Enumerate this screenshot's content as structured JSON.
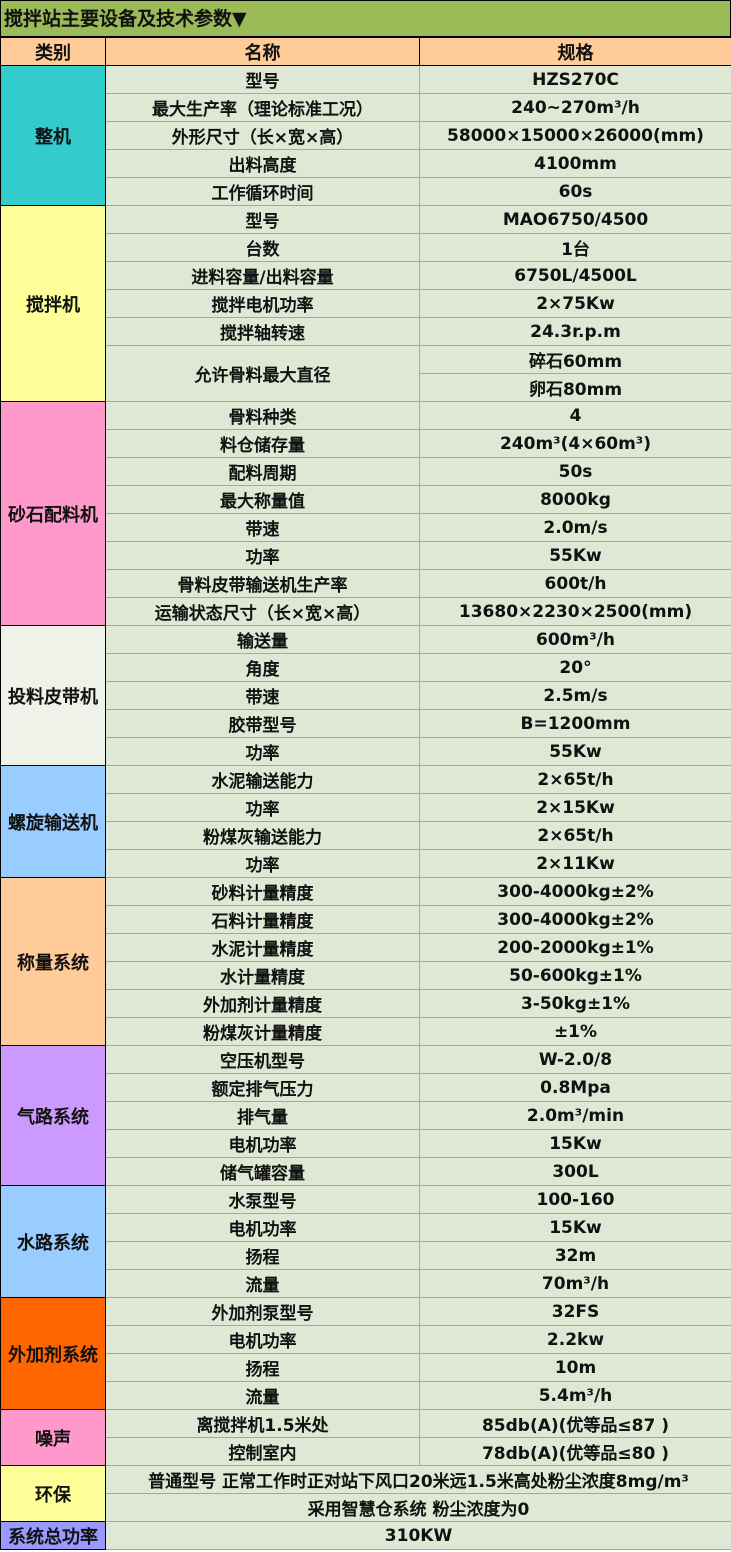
{
  "title": "搅拌站主要设备及技术参数▼",
  "headers": [
    "类别",
    "名称",
    "规格"
  ],
  "categories": [
    {
      "name": "整机",
      "color": "#33cccc",
      "rows": [
        {
          "name": "型号",
          "spec": "HZS270C"
        },
        {
          "name": "最大生产率（理论标准工况）",
          "spec": "240~270m³/h"
        },
        {
          "name": "外形尺寸（长×宽×高）",
          "spec": "58000×15000×26000(mm)"
        },
        {
          "name": "出料高度",
          "spec": "4100mm"
        },
        {
          "name": "工作循环时间",
          "spec": "60s"
        }
      ]
    },
    {
      "name": "搅拌机",
      "color": "#ffff99",
      "rows": [
        {
          "name": "型号",
          "spec": "MAO6750/4500"
        },
        {
          "name": "台数",
          "spec": "1台"
        },
        {
          "name": "进料容量/出料容量",
          "spec": "6750L/4500L"
        },
        {
          "name": "搅拌电机功率",
          "spec": "2×75Kw"
        },
        {
          "name": "搅拌轴转速",
          "spec": "24.3r.p.m"
        },
        {
          "name": "允许骨料最大直径",
          "specs": [
            "碎石60mm",
            "卵石80mm"
          ]
        }
      ]
    },
    {
      "name": "砂石配料机",
      "color": "#ff99cc",
      "rows": [
        {
          "name": "骨料种类",
          "spec": "4"
        },
        {
          "name": "料仓储存量",
          "spec": "240m³(4×60m³)"
        },
        {
          "name": "配料周期",
          "spec": "50s"
        },
        {
          "name": "最大称量值",
          "spec": "8000kg"
        },
        {
          "name": "带速",
          "spec": "2.0m/s"
        },
        {
          "name": "功率",
          "spec": "55Kw"
        },
        {
          "name": "骨料皮带输送机生产率",
          "spec": "600t/h"
        },
        {
          "name": "运输状态尺寸（长×宽×高）",
          "spec": "13680×2230×2500(mm)"
        }
      ]
    },
    {
      "name": "投料皮带机",
      "color": "#eef2e8",
      "rows": [
        {
          "name": "输送量",
          "spec": "600m³/h"
        },
        {
          "name": "角度",
          "spec": "20°"
        },
        {
          "name": "带速",
          "spec": "2.5m/s"
        },
        {
          "name": "胶带型号",
          "spec": "B=1200mm"
        },
        {
          "name": "功率",
          "spec": "55Kw"
        }
      ]
    },
    {
      "name": "螺旋输送机",
      "color": "#99ccff",
      "rows": [
        {
          "name": "水泥输送能力",
          "spec": "2×65t/h"
        },
        {
          "name": "功率",
          "spec": "2×15Kw"
        },
        {
          "name": "粉煤灰输送能力",
          "spec": "2×65t/h"
        },
        {
          "name": "功率",
          "spec": "2×11Kw"
        }
      ]
    },
    {
      "name": "称量系统",
      "color": "#ffcc99",
      "rows": [
        {
          "name": "砂料计量精度",
          "spec": "300-4000kg±2%"
        },
        {
          "name": "石料计量精度",
          "spec": "300-4000kg±2%"
        },
        {
          "name": "水泥计量精度",
          "spec": "200-2000kg±1%"
        },
        {
          "name": "水计量精度",
          "spec": "50-600kg±1%"
        },
        {
          "name": "外加剂计量精度",
          "spec": "3-50kg±1%"
        },
        {
          "name": "粉煤灰计量精度",
          "spec": "±1%"
        }
      ]
    },
    {
      "name": "气路系统",
      "color": "#cc99ff",
      "rows": [
        {
          "name": "空压机型号",
          "spec": "W-2.0/8"
        },
        {
          "name": "额定排气压力",
          "spec": "0.8Mpa"
        },
        {
          "name": "排气量",
          "spec": "2.0m³/min"
        },
        {
          "name": "电机功率",
          "spec": "15Kw"
        },
        {
          "name": "储气罐容量",
          "spec": "300L"
        }
      ]
    },
    {
      "name": "水路系统",
      "color": "#99ccff",
      "rows": [
        {
          "name": "水泵型号",
          "spec": "100-160"
        },
        {
          "name": "电机功率",
          "spec": "15Kw"
        },
        {
          "name": "扬程",
          "spec": "32m"
        },
        {
          "name": "流量",
          "spec": "70m³/h"
        }
      ]
    },
    {
      "name": "外加剂系统",
      "color": "#ff6600",
      "rows": [
        {
          "name": "外加剂泵型号",
          "spec": "32FS"
        },
        {
          "name": "电机功率",
          "spec": "2.2kw"
        },
        {
          "name": "扬程",
          "spec": "10m"
        },
        {
          "name": "流量",
          "spec": "5.4m³/h"
        }
      ]
    },
    {
      "name": "噪声",
      "color": "#ff99cc",
      "rows": [
        {
          "name": "离搅拌机1.5米处",
          "spec": "85db(A)(优等品≤87 )"
        },
        {
          "name": "控制室内",
          "spec": "78db(A)(优等品≤80 )"
        }
      ]
    },
    {
      "name": "环保",
      "color": "#ffff99",
      "rows": [
        {
          "text": "普通型号 正常工作时正对站下风口20米远1.5米高处粉尘浓度8mg/m³"
        },
        {
          "text": "采用智慧仓系统 粉尘浓度为0"
        }
      ]
    },
    {
      "name": "系统总功率",
      "color": "#9999ff",
      "rows": [
        {
          "text": "310KW"
        }
      ]
    }
  ]
}
